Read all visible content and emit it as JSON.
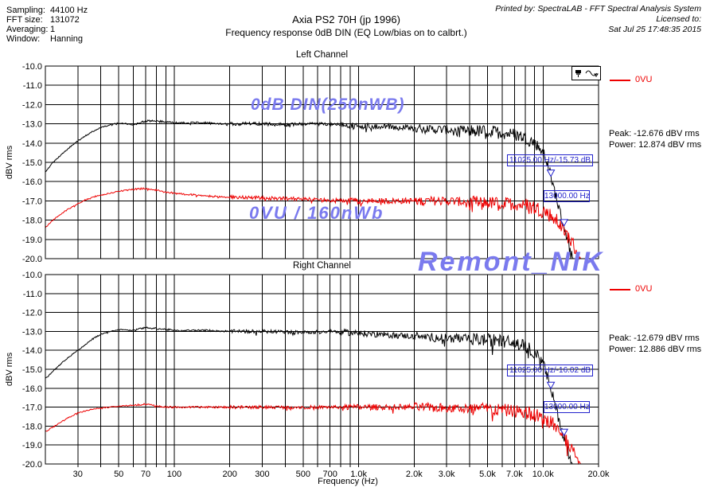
{
  "header": {
    "params": [
      {
        "label": "Sampling:",
        "value": "44100 Hz"
      },
      {
        "label": "FFT size:",
        "value": "131072"
      },
      {
        "label": "Averaging:",
        "value": "1"
      },
      {
        "label": "Window:",
        "value": "Hanning"
      }
    ],
    "title_line1": "Axia PS2 70H (jp 1996)",
    "title_line2": "Frequency response 0dB DIN (EQ Low/bias on to calbrt.)",
    "printed_by": "Printed by: SpectraLAB - FFT Spectral Analysis System",
    "licensed_to": "Licensed to:",
    "printed_date": "Sat Jul 25 17:48:35 2015"
  },
  "axis": {
    "ylabel": "dBV rms",
    "xlabel": "Frequency (Hz)"
  },
  "watermarks": {
    "din": "0dB DIN(250nWB)",
    "vu": "0VU / 160nWb",
    "name": "Remont_NIK"
  },
  "colors": {
    "trace_black": "#000000",
    "trace_red": "#ee0000",
    "cursor_blue": "#2222cc",
    "watermark_blue": "#7a7aee"
  },
  "left_channel": {
    "title": "Left Channel",
    "legend_label": "0VU",
    "peak_text": "Peak: -12.676 dBV rms",
    "power_text": "Power: 12.874 dBV rms",
    "cursor1_label": "11025.00 Hz/-15.73 dB",
    "cursor2_label": "13000.00 Hz"
  },
  "right_channel": {
    "title": "Right Channel",
    "legend_label": "0VU",
    "peak_text": "Peak: -12.679 dBV rms",
    "power_text": "Power: 12.886 dBV rms",
    "cursor1_label": "11025.00 Hz/-16.02 dB",
    "cursor2_label": "13000.00 Hz"
  },
  "chart_data": [
    {
      "type": "line",
      "id": "left-channel",
      "title": "Left Channel",
      "xlabel": "Frequency (Hz)",
      "ylabel": "dBV rms",
      "xscale": "log",
      "xlim": [
        20,
        20000
      ],
      "ylim": [
        -20,
        -10
      ],
      "grid": true,
      "legend": {
        "label": "0VU",
        "color": "#ee0000",
        "position": "right-top"
      },
      "peak_dbv_rms": -12.676,
      "power_dbv_rms": 12.874,
      "yticks": {
        "values": [
          -10,
          -11,
          -12,
          -13,
          -14,
          -15,
          -16,
          -17,
          -18,
          -19,
          -20
        ],
        "labels": [
          "-10.0",
          "-11.0",
          "-12.0",
          "-13.0",
          "-14.0",
          "-15.0",
          "-16.0",
          "-17.0",
          "-18.0",
          "-19.0",
          "-20.0"
        ]
      },
      "xticks": {
        "values": [
          30,
          50,
          70,
          100,
          200,
          300,
          500,
          700,
          1000,
          2000,
          3000,
          5000,
          7000,
          10000,
          20000
        ],
        "labels": [
          "30",
          "50",
          "70",
          "100",
          "200",
          "300",
          "500",
          "700",
          "1.0k",
          "2.0k",
          "3.0k",
          "5.0k",
          "7.0k",
          "10.0k",
          "20.0k"
        ]
      },
      "grid_freqs": [
        30,
        40,
        50,
        60,
        70,
        80,
        90,
        100,
        200,
        300,
        400,
        500,
        600,
        700,
        800,
        900,
        1000,
        2000,
        3000,
        4000,
        5000,
        6000,
        7000,
        8000,
        9000,
        10000,
        20000
      ],
      "series": [
        {
          "id": "din-left",
          "name": "0dB DIN(250nWB)",
          "color": "#000000",
          "points": [
            [
              20,
              -15.5
            ],
            [
              22,
              -15.0
            ],
            [
              25,
              -14.5
            ],
            [
              28,
              -14.1
            ],
            [
              32,
              -13.7
            ],
            [
              36,
              -13.4
            ],
            [
              40,
              -13.2
            ],
            [
              45,
              -13.05
            ],
            [
              50,
              -12.95
            ],
            [
              60,
              -13.05
            ],
            [
              70,
              -12.85
            ],
            [
              80,
              -12.85
            ],
            [
              90,
              -12.9
            ],
            [
              100,
              -12.95
            ],
            [
              150,
              -12.95
            ],
            [
              200,
              -13.0
            ],
            [
              300,
              -13.0
            ],
            [
              400,
              -13.05
            ],
            [
              500,
              -13.0
            ],
            [
              700,
              -13.0
            ],
            [
              1000,
              -13.1
            ],
            [
              1500,
              -13.15
            ],
            [
              2000,
              -13.25
            ],
            [
              3000,
              -13.3
            ],
            [
              4000,
              -13.35
            ],
            [
              5000,
              -13.4
            ],
            [
              6000,
              -13.45
            ],
            [
              7000,
              -13.55
            ],
            [
              8000,
              -13.7
            ],
            [
              9000,
              -14.0
            ],
            [
              9500,
              -14.2
            ],
            [
              10000,
              -14.5
            ],
            [
              10500,
              -15.0
            ],
            [
              11025,
              -15.73
            ],
            [
              11500,
              -16.4
            ],
            [
              12000,
              -17.1
            ],
            [
              12500,
              -17.8
            ],
            [
              13000,
              -18.3
            ],
            [
              13500,
              -18.9
            ],
            [
              14000,
              -19.5
            ],
            [
              14500,
              -20.0
            ],
            [
              20000,
              -20.0
            ]
          ]
        },
        {
          "id": "vu-left",
          "name": "0VU / 160nWb",
          "color": "#ee0000",
          "points": [
            [
              20,
              -18.4
            ],
            [
              22,
              -18.0
            ],
            [
              25,
              -17.6
            ],
            [
              28,
              -17.3
            ],
            [
              32,
              -17.0
            ],
            [
              36,
              -16.8
            ],
            [
              40,
              -16.7
            ],
            [
              45,
              -16.6
            ],
            [
              50,
              -16.5
            ],
            [
              60,
              -16.4
            ],
            [
              70,
              -16.35
            ],
            [
              80,
              -16.45
            ],
            [
              90,
              -16.55
            ],
            [
              100,
              -16.6
            ],
            [
              150,
              -16.75
            ],
            [
              200,
              -16.8
            ],
            [
              300,
              -16.85
            ],
            [
              500,
              -16.9
            ],
            [
              700,
              -16.95
            ],
            [
              1000,
              -17.0
            ],
            [
              2000,
              -17.0
            ],
            [
              3000,
              -17.0
            ],
            [
              5000,
              -17.1
            ],
            [
              7000,
              -17.15
            ],
            [
              8000,
              -17.25
            ],
            [
              9000,
              -17.35
            ],
            [
              10000,
              -17.5
            ],
            [
              11000,
              -17.75
            ],
            [
              12000,
              -18.1
            ],
            [
              13000,
              -18.5
            ],
            [
              14000,
              -19.0
            ],
            [
              15000,
              -19.5
            ],
            [
              16000,
              -20.0
            ],
            [
              20000,
              -20.0
            ]
          ]
        }
      ],
      "markers": [
        {
          "freq_hz": 11025,
          "level_db": -15.73,
          "label": "11025.00 Hz/-15.73 dB"
        },
        {
          "freq_hz": 13000,
          "level_db": null,
          "label": "13000.00 Hz"
        }
      ]
    },
    {
      "type": "line",
      "id": "right-channel",
      "title": "Right Channel",
      "xlabel": "Frequency (Hz)",
      "ylabel": "dBV rms",
      "xscale": "log",
      "xlim": [
        20,
        20000
      ],
      "ylim": [
        -20,
        -10
      ],
      "grid": true,
      "legend": {
        "label": "0VU",
        "color": "#ee0000",
        "position": "right-top"
      },
      "peak_dbv_rms": -12.679,
      "power_dbv_rms": 12.886,
      "yticks": {
        "values": [
          -10,
          -11,
          -12,
          -13,
          -14,
          -15,
          -16,
          -17,
          -18,
          -19,
          -20
        ],
        "labels": [
          "-10.0",
          "-11.0",
          "-12.0",
          "-13.0",
          "-14.0",
          "-15.0",
          "-16.0",
          "-17.0",
          "-18.0",
          "-19.0",
          "-20.0"
        ]
      },
      "xticks": {
        "values": [
          30,
          50,
          70,
          100,
          200,
          300,
          500,
          700,
          1000,
          2000,
          3000,
          5000,
          7000,
          10000,
          20000
        ],
        "labels": [
          "30",
          "50",
          "70",
          "100",
          "200",
          "300",
          "500",
          "700",
          "1.0k",
          "2.0k",
          "3.0k",
          "5.0k",
          "7.0k",
          "10.0k",
          "20.0k"
        ]
      },
      "grid_freqs": [
        30,
        40,
        50,
        60,
        70,
        80,
        90,
        100,
        200,
        300,
        400,
        500,
        600,
        700,
        800,
        900,
        1000,
        2000,
        3000,
        4000,
        5000,
        6000,
        7000,
        8000,
        9000,
        10000,
        20000
      ],
      "series": [
        {
          "id": "din-right",
          "name": "0dB DIN(250nWB)",
          "color": "#000000",
          "points": [
            [
              20,
              -15.5
            ],
            [
              22,
              -15.1
            ],
            [
              25,
              -14.6
            ],
            [
              28,
              -14.2
            ],
            [
              32,
              -13.8
            ],
            [
              36,
              -13.4
            ],
            [
              40,
              -13.15
            ],
            [
              45,
              -13.0
            ],
            [
              50,
              -12.9
            ],
            [
              60,
              -12.95
            ],
            [
              70,
              -12.8
            ],
            [
              80,
              -12.85
            ],
            [
              90,
              -12.9
            ],
            [
              100,
              -12.95
            ],
            [
              150,
              -12.95
            ],
            [
              200,
              -13.0
            ],
            [
              300,
              -13.0
            ],
            [
              500,
              -13.05
            ],
            [
              700,
              -13.0
            ],
            [
              1000,
              -13.1
            ],
            [
              1500,
              -13.2
            ],
            [
              2000,
              -13.25
            ],
            [
              3000,
              -13.35
            ],
            [
              4000,
              -13.4
            ],
            [
              5000,
              -13.45
            ],
            [
              6000,
              -13.5
            ],
            [
              7000,
              -13.6
            ],
            [
              8000,
              -13.8
            ],
            [
              9000,
              -14.1
            ],
            [
              9500,
              -14.35
            ],
            [
              10000,
              -14.7
            ],
            [
              10500,
              -15.3
            ],
            [
              11025,
              -16.02
            ],
            [
              11500,
              -16.7
            ],
            [
              12000,
              -17.4
            ],
            [
              12500,
              -18.0
            ],
            [
              13000,
              -18.5
            ],
            [
              13500,
              -19.1
            ],
            [
              14000,
              -19.7
            ],
            [
              14400,
              -20.0
            ],
            [
              20000,
              -20.0
            ]
          ]
        },
        {
          "id": "vu-right",
          "name": "0VU / 160nWb",
          "color": "#ee0000",
          "points": [
            [
              20,
              -18.3
            ],
            [
              25,
              -17.7
            ],
            [
              30,
              -17.3
            ],
            [
              36,
              -17.1
            ],
            [
              40,
              -17.05
            ],
            [
              45,
              -17.0
            ],
            [
              50,
              -16.95
            ],
            [
              60,
              -16.9
            ],
            [
              70,
              -16.85
            ],
            [
              80,
              -16.95
            ],
            [
              90,
              -17.0
            ],
            [
              100,
              -17.0
            ],
            [
              200,
              -17.0
            ],
            [
              300,
              -17.0
            ],
            [
              500,
              -17.0
            ],
            [
              700,
              -17.0
            ],
            [
              1000,
              -17.0
            ],
            [
              2000,
              -17.0
            ],
            [
              3000,
              -17.05
            ],
            [
              5000,
              -17.1
            ],
            [
              7000,
              -17.2
            ],
            [
              8000,
              -17.3
            ],
            [
              9000,
              -17.4
            ],
            [
              10000,
              -17.55
            ],
            [
              11000,
              -17.8
            ],
            [
              12000,
              -18.15
            ],
            [
              13000,
              -18.55
            ],
            [
              14000,
              -19.05
            ],
            [
              15000,
              -19.55
            ],
            [
              16000,
              -20.0
            ],
            [
              20000,
              -20.0
            ]
          ]
        }
      ],
      "markers": [
        {
          "freq_hz": 11025,
          "level_db": -16.02,
          "label": "11025.00 Hz/-16.02 dB"
        },
        {
          "freq_hz": 13000,
          "level_db": null,
          "label": "13000.00 Hz"
        }
      ]
    }
  ]
}
